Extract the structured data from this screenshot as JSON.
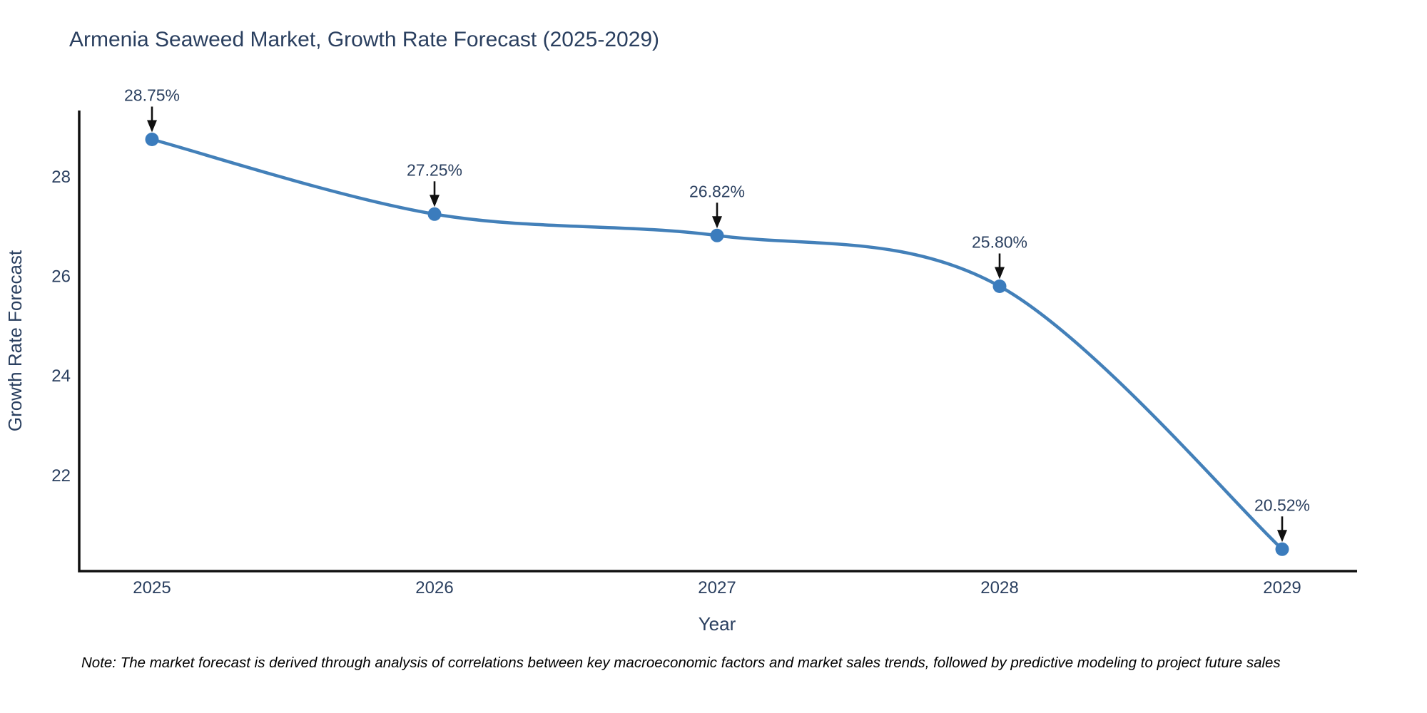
{
  "title": "Armenia Seaweed Market, Growth Rate Forecast (2025-2029)",
  "note": "Note: The market forecast is derived through analysis of correlations between key macroeconomic factors and market sales trends, followed by predictive modeling to project future sales",
  "chart_data": {
    "type": "line",
    "line_shape": "spline",
    "x": [
      "2025",
      "2026",
      "2027",
      "2028",
      "2029"
    ],
    "series": [
      {
        "name": "Growth Rate Forecast",
        "values": [
          28.75,
          27.25,
          26.82,
          25.8,
          20.52
        ]
      }
    ],
    "point_labels": [
      "28.75%",
      "27.25%",
      "26.82%",
      "25.80%",
      "20.52%"
    ],
    "annotation_arrow": "down-arrow-to-point",
    "xlabel": "Year",
    "ylabel": "Growth Rate Forecast",
    "yticks": [
      22,
      24,
      26,
      28
    ],
    "ylim": [
      20.08,
      29.33
    ],
    "grid": false,
    "legend": "none",
    "markers": true,
    "colors": {
      "line": "#4380b9",
      "marker": "#3b7cbd",
      "axis": "#101010",
      "arrow": "#101010",
      "text": "#2a3f5f",
      "note_text": "#000000",
      "background": "#ffffff"
    }
  }
}
